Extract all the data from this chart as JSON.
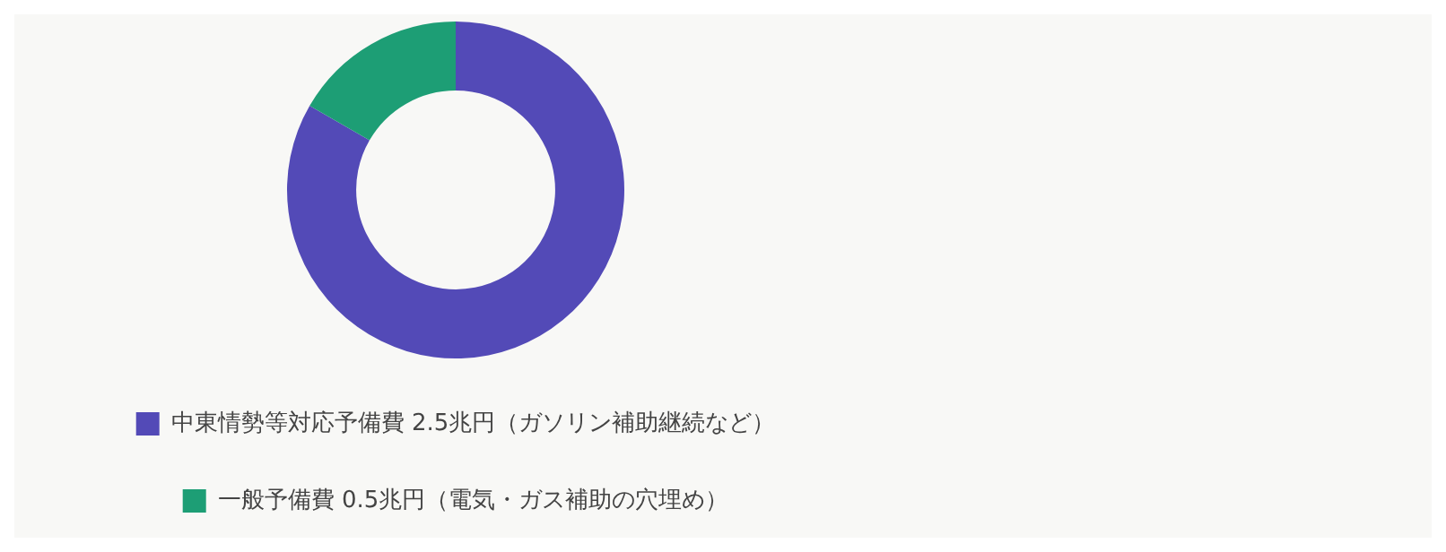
{
  "chart_data": {
    "type": "donut",
    "categories": [
      "中東情勢等対応予備費 2.5兆円（ガソリン補助継続など）",
      "一般予備費 0.5兆円（電気・ガス補助の穴埋め）"
    ],
    "values": [
      2.5,
      0.5
    ],
    "colors": [
      "#534ab7",
      "#1d9e75"
    ],
    "legend": "bottom"
  }
}
